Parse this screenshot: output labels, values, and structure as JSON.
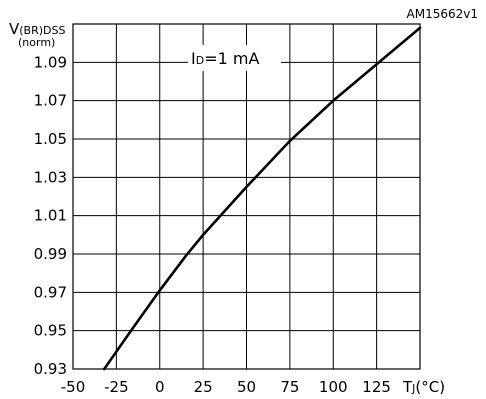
{
  "chart_data": {
    "type": "line",
    "figure_code": "AM15662v1",
    "ylabel": {
      "symbol": "V",
      "subscript": "(BR)DSS",
      "unit": "(norm)"
    },
    "xlabel": {
      "symbol": "T",
      "subscript": "J",
      "unit": "(°C)"
    },
    "annotation": {
      "prefix": "I",
      "subscript": "D",
      "value": "=1 mA"
    },
    "x_ticks": [
      "-50",
      "-25",
      "0",
      "25",
      "50",
      "75",
      "100",
      "125"
    ],
    "y_ticks": [
      "0.93",
      "0.95",
      "0.97",
      "0.99",
      "1.01",
      "1.03",
      "1.05",
      "1.07",
      "1.09"
    ],
    "xlim": [
      -50,
      150
    ],
    "ylim": [
      0.93,
      1.11
    ],
    "grid": true,
    "series": [
      {
        "x": [
          -32,
          -15,
          0,
          15,
          25,
          50,
          75,
          100,
          125,
          150
        ],
        "y": [
          0.93,
          0.952,
          0.971,
          0.989,
          1.0,
          1.025,
          1.049,
          1.07,
          1.089,
          1.108
        ]
      }
    ]
  }
}
